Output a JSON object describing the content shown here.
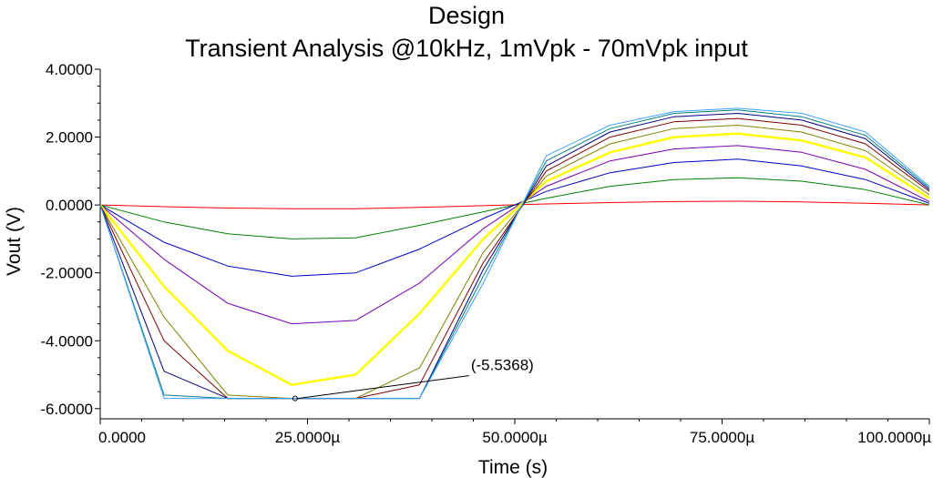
{
  "chart_data": {
    "type": "line",
    "title": "Design",
    "subtitle": "Transient Analysis @10kHz, 1mVpk - 70mVpk input",
    "xlabel": "Time (s)",
    "ylabel": "Vout (V)",
    "xlim": [
      0,
      100
    ],
    "ylim": [
      -6.3,
      4.0
    ],
    "x_unit": "µs",
    "x_ticks": [
      0,
      25,
      50,
      75,
      100
    ],
    "x_tick_labels": [
      "0.0000",
      "25.0000µ",
      "50.0000µ",
      "75.0000µ",
      "100.0000µ"
    ],
    "y_ticks": [
      4,
      2,
      0,
      -2,
      -4,
      -6
    ],
    "y_tick_labels": [
      "4.0000",
      "2.0000",
      "0.0000",
      "-2.0000",
      "-4.0000",
      "-6.0000"
    ],
    "grid": false,
    "legend": "none",
    "x": [
      0,
      7.7,
      15.4,
      23.1,
      30.8,
      38.5,
      46.2,
      53.8,
      61.5,
      69.2,
      76.9,
      84.6,
      92.3,
      100
    ],
    "series": [
      {
        "color": "#ff0000",
        "values": [
          0,
          -0.05,
          -0.09,
          -0.11,
          -0.11,
          -0.07,
          -0.02,
          0.03,
          0.07,
          0.1,
          0.11,
          0.09,
          0.05,
          0
        ]
      },
      {
        "color": "#008000",
        "values": [
          0,
          -0.5,
          -0.85,
          -1.0,
          -0.97,
          -0.6,
          -0.2,
          0.2,
          0.55,
          0.75,
          0.8,
          0.7,
          0.45,
          0
        ]
      },
      {
        "color": "#0000c0",
        "values": [
          0,
          -1.1,
          -1.8,
          -2.1,
          -2.0,
          -1.3,
          -0.4,
          0.4,
          0.95,
          1.25,
          1.35,
          1.15,
          0.75,
          0.05
        ]
      },
      {
        "color": "#7a00b0",
        "values": [
          0,
          -1.6,
          -2.9,
          -3.5,
          -3.4,
          -2.3,
          -0.7,
          0.55,
          1.3,
          1.65,
          1.75,
          1.55,
          1.05,
          0.1
        ]
      },
      {
        "color": "#ffff00",
        "values": [
          0,
          -2.4,
          -4.3,
          -5.3,
          -5.0,
          -3.2,
          -1.0,
          0.7,
          1.55,
          2.0,
          2.1,
          1.9,
          1.4,
          0.2
        ]
      },
      {
        "color": "#808000",
        "values": [
          0,
          -3.3,
          -5.6,
          -5.7,
          -5.7,
          -4.8,
          -1.4,
          0.85,
          1.8,
          2.25,
          2.35,
          2.15,
          1.6,
          0.3
        ]
      },
      {
        "color": "#800000",
        "values": [
          0,
          -4.0,
          -5.7,
          -5.7,
          -5.7,
          -5.3,
          -1.7,
          1.0,
          2.0,
          2.45,
          2.55,
          2.35,
          1.8,
          0.4
        ]
      },
      {
        "color": "#000080",
        "values": [
          0,
          -4.9,
          -5.7,
          -5.7,
          -5.7,
          -5.7,
          -1.9,
          1.15,
          2.15,
          2.6,
          2.7,
          2.5,
          1.95,
          0.45
        ]
      },
      {
        "color": "#008080",
        "values": [
          0,
          -5.6,
          -5.7,
          -5.7,
          -5.7,
          -5.7,
          -2.1,
          1.3,
          2.25,
          2.7,
          2.8,
          2.6,
          2.05,
          0.5
        ]
      },
      {
        "color": "#40a0ff",
        "values": [
          0,
          -5.7,
          -5.7,
          -5.7,
          -5.7,
          -5.7,
          -2.3,
          1.45,
          2.35,
          2.75,
          2.85,
          2.7,
          2.15,
          0.55
        ]
      }
    ],
    "highlight_series_index": 4,
    "annotations": [
      {
        "text": "(-5.5368)",
        "x": 23.5,
        "y": -5.7
      }
    ]
  }
}
